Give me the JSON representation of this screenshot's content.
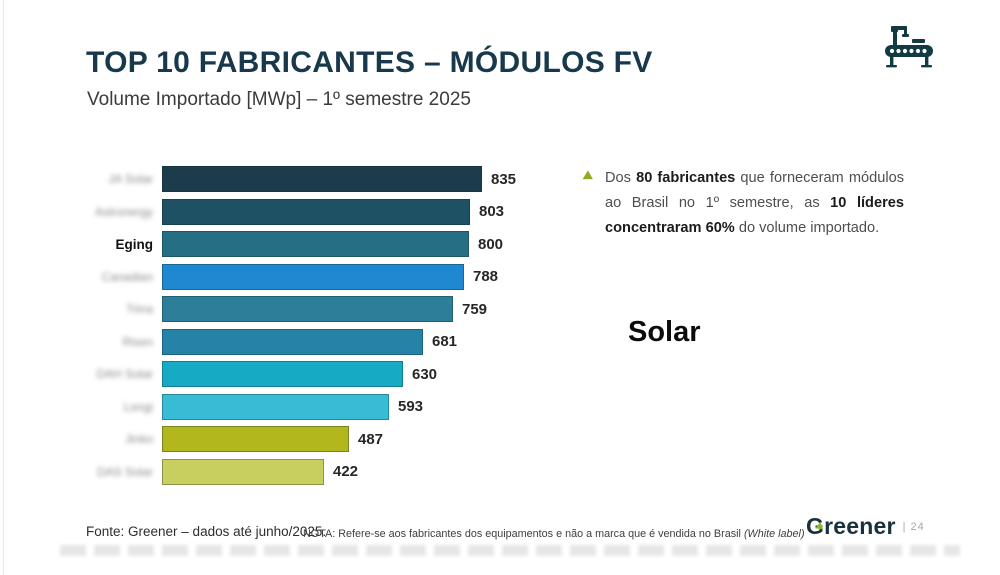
{
  "header": {
    "title": "TOP 10 FABRICANTES – MÓDULOS FV",
    "subtitle": "Volume Importado [MWp] – 1º semestre 2025"
  },
  "icons": {
    "factory": "factory-conveyor-icon",
    "note_bullet": "green-arrow-bullet",
    "colors": {
      "icon_dark_teal": "#123a44",
      "bullet_green": "#93a823"
    }
  },
  "chart_data": {
    "type": "bar",
    "orientation": "horizontal",
    "title": "TOP 10 FABRICANTES – MÓDULOS FV",
    "subtitle": "Volume Importado [MWp] – 1º semestre 2025",
    "unit": "MWp",
    "xlim": [
      0,
      900
    ],
    "grid": false,
    "legend": false,
    "categories": [
      "JA Solar",
      "Astronergy",
      "Eging",
      "Canadian",
      "Trina",
      "Risen",
      "DAH Solar",
      "Longi",
      "Jinko",
      "DAS Solar"
    ],
    "label_blurred": [
      true,
      true,
      false,
      true,
      true,
      true,
      true,
      true,
      true,
      true
    ],
    "values": [
      835,
      803,
      800,
      788,
      759,
      681,
      630,
      593,
      487,
      422
    ],
    "bar_colors": [
      "#1c3c4c",
      "#1d5163",
      "#266e83",
      "#1e88d1",
      "#2d7f99",
      "#2683a8",
      "#16abc4",
      "#38bcd6",
      "#b2b71d",
      "#c9cf5e"
    ],
    "value_labels": [
      "835",
      "803",
      "800",
      "788",
      "759",
      "681",
      "630",
      "593",
      "487",
      "422"
    ]
  },
  "note": {
    "segments": [
      {
        "text": "Dos ",
        "bold": false
      },
      {
        "text": "80 fabricantes",
        "bold": true
      },
      {
        "text": " que forneceram módulos ao Brasil no 1º semestre, as ",
        "bold": false
      },
      {
        "text": "10 líderes concentraram 60%",
        "bold": true
      },
      {
        "text": " do volume importado.",
        "bold": false
      }
    ]
  },
  "overlay": {
    "text": "Solar"
  },
  "footer": {
    "fonte": "Fonte: Greener – dados até junho/2025.",
    "nota_label": "NOTA:",
    "nota_text": " Refere-se aos fabricantes dos equipamentos e não a marca que é vendida no Brasil ",
    "nota_italic": "(White label)"
  },
  "branding": {
    "name": "Greener",
    "separator": "|",
    "page": "24"
  }
}
